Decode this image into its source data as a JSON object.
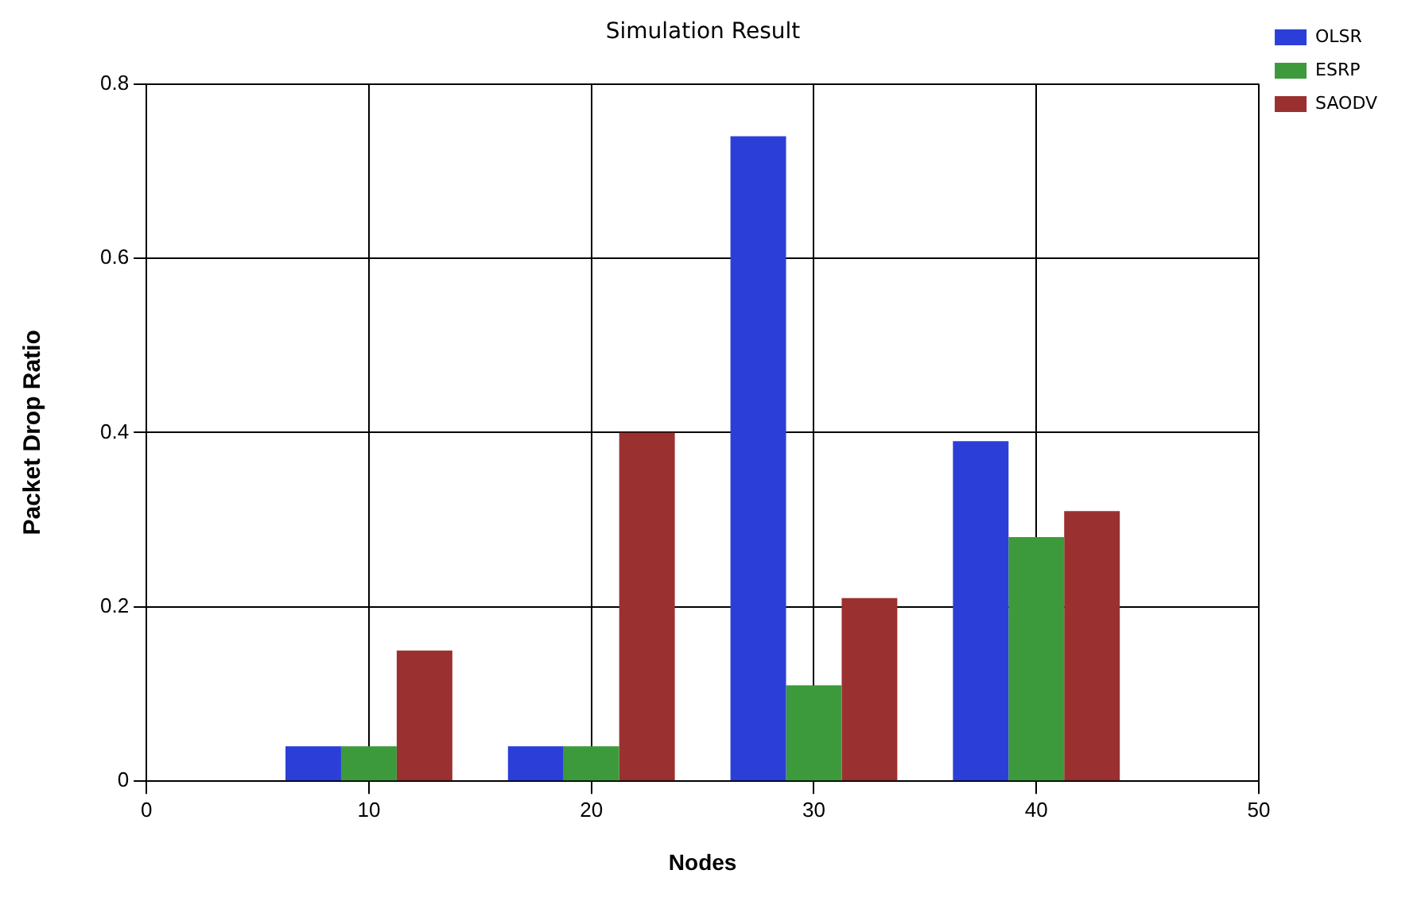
{
  "chart_data": {
    "type": "bar",
    "title": "Simulation Result",
    "xlabel": "Nodes",
    "ylabel": "Packet Drop Ratio",
    "x": [
      10,
      20,
      30,
      40
    ],
    "xlim": [
      0,
      50
    ],
    "xticks": [
      0,
      10,
      20,
      30,
      40,
      50
    ],
    "ylim": [
      0,
      0.8
    ],
    "yticks": [
      0,
      0.2,
      0.4,
      0.6,
      0.8
    ],
    "series": [
      {
        "name": "OLSR",
        "color": "#2b3fd8",
        "values": [
          0.04,
          0.04,
          0.74,
          0.39
        ]
      },
      {
        "name": "ESRP",
        "color": "#3c9a3c",
        "values": [
          0.04,
          0.04,
          0.11,
          0.28
        ]
      },
      {
        "name": "SAODV",
        "color": "#9b3030",
        "values": [
          0.15,
          0.4,
          0.21,
          0.31
        ]
      }
    ],
    "grid": true,
    "legend": "top right"
  }
}
